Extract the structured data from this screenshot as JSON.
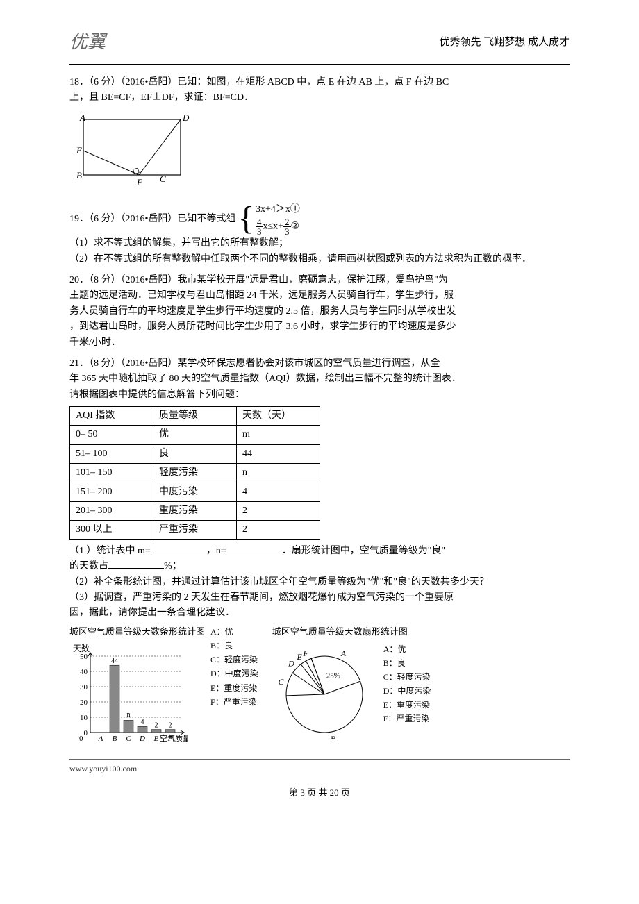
{
  "header": {
    "logo": "优翼",
    "slogan": "优秀领先   飞翔梦想   成人成才"
  },
  "q18": {
    "line1": "18．（6 分）（2016•岳阳）已知：如图，在矩形 ABCD 中，点 E 在边 AB 上，点 F 在边 BC",
    "line2": "上，且 BE=CF，EF⊥DF，求证：BF=CD．",
    "fig": {
      "A": "A",
      "B": "B",
      "C": "C",
      "D": "D",
      "E": "E",
      "F": "F"
    }
  },
  "q19": {
    "prefix": "19．（6 分）（2016•岳阳）已知不等式组",
    "eq1": "3x+4＞x①",
    "eq2_frac1_num": "4",
    "eq2_frac1_den": "3",
    "eq2_mid": "x≤x+",
    "eq2_frac2_num": "2",
    "eq2_frac2_den": "3",
    "eq2_suffix": "②",
    "p1": "（1）求不等式组的解集，并写出它的所有整数解；",
    "p2": "（2）在不等式组的所有整数解中任取两个不同的整数相乘，请用画树状图或列表的方法求积为正数的概率．"
  },
  "q20": {
    "l1": "20．（8 分）（2016•岳阳）我市某学校开展\"远是君山，磨砺意志，保护江豚，爱鸟护鸟\"为",
    "l2": "主题的远足活动．已知学校与君山岛相距 24 千米，远足服务人员骑自行车，学生步行，服",
    "l3": "务人员骑自行车的平均速度是学生步行平均速度的 2.5 倍，服务人员与学生同时从学校出发",
    "l4": "，到达君山岛时，服务人员所花时间比学生少用了 3.6 小时，求学生步行的平均速度是多少",
    "l5": "千米/小时．"
  },
  "q21": {
    "l1": "21．（8 分）（2016•岳阳）某学校环保志愿者协会对该市城区的空气质量进行调查，从全",
    "l2": "年 365 天中随机抽取了 80 天的空气质量指数（AQI）数据，绘制出三幅不完整的统计图表．",
    "l3": "请根据图表中提供的信息解答下列问题：",
    "table": {
      "headers": [
        "AQI 指数",
        "质量等级",
        "天数（天）"
      ],
      "rows": [
        [
          "0– 50",
          "优",
          "m"
        ],
        [
          "51– 100",
          "良",
          "44"
        ],
        [
          "101– 150",
          "轻度污染",
          "n"
        ],
        [
          "151– 200",
          "中度污染",
          "4"
        ],
        [
          "201– 300",
          "重度污染",
          "2"
        ],
        [
          "300 以上",
          "严重污染",
          "2"
        ]
      ]
    },
    "p1a": "（1 ）统计表中 m=",
    "p1b": "，n=",
    "p1c": "．扇形统计图中，空气质量等级为\"良\"",
    "p1d": "的天数占",
    "p1e": "%；",
    "p2": "（2）补全条形统计图，并通过计算估计该市城区全年空气质量等级为\"优\"和\"良\"的天数共多少天？",
    "p3a": "（3）据调查，严重污染的 2 天发生在春节期间，燃放烟花爆竹成为空气污染的一个重要原",
    "p3b": "因，据此，请你提出一条合理化建议．",
    "bar_chart": {
      "title": "城区空气质量等级天数条形统计图",
      "type": "bar",
      "ylabel": "天数",
      "xlabel": "空气质量等级",
      "categories": [
        "A",
        "B",
        "C",
        "D",
        "E",
        "F"
      ],
      "values": [
        null,
        44,
        null,
        4,
        2,
        2
      ],
      "value_labels": [
        "",
        "44",
        "n",
        "4",
        "2",
        "2"
      ],
      "bar_colors": [
        "#888888",
        "#888888",
        "#888888",
        "#888888",
        "#888888",
        "#888888"
      ],
      "ylim": [
        0,
        50
      ],
      "ytick_step": 10,
      "background": "#ffffff",
      "grid": true,
      "grid_color": "#000000"
    },
    "pie_chart": {
      "title": "城区空气质量等级天数扇形统计图",
      "type": "pie",
      "slices": [
        {
          "label": "A",
          "text": "25%",
          "angle_start": -20,
          "angle_end": 70
        },
        {
          "label": "B",
          "angle_start": 70,
          "angle_end": 268
        },
        {
          "label": "C",
          "angle_start": 268,
          "angle_end": 304
        },
        {
          "label": "D",
          "angle_start": 304,
          "angle_end": 322
        },
        {
          "label": "E",
          "angle_start": 322,
          "angle_end": 331
        },
        {
          "label": "F",
          "angle_start": 331,
          "angle_end": 340
        }
      ],
      "stroke": "#000000",
      "fill": "#ffffff"
    },
    "legend": {
      "A": "A：优",
      "B": "B：良",
      "C": "C：轻度污染",
      "D": "D：中度污染",
      "E": "E：重度污染",
      "F": "F：严重污染"
    }
  },
  "footer": {
    "url": "www.youyi100.com",
    "page": "第 3 页 共 20 页"
  }
}
